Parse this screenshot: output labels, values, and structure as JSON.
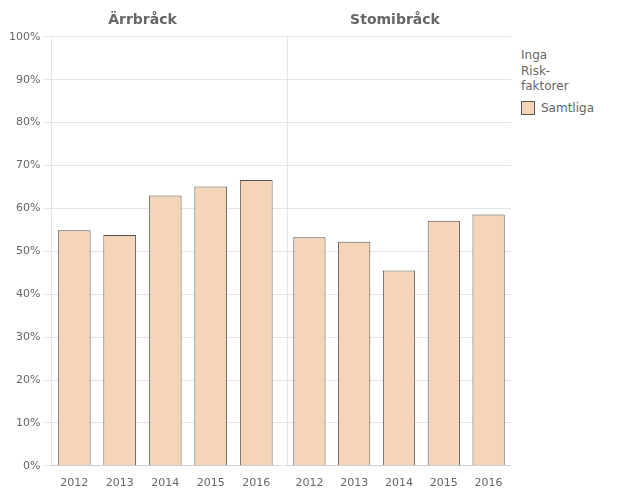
{
  "chart_data": [
    {
      "type": "bar",
      "title": "Ärrbråck",
      "categories": [
        "2012",
        "2013",
        "2014",
        "2015",
        "2016"
      ],
      "series": [
        {
          "name": "Samtliga",
          "color": "#F5D5B8",
          "values": [
            54.9,
            53.8,
            63.0,
            65.1,
            66.6
          ]
        }
      ],
      "ylim": [
        0,
        100
      ],
      "yticks": [
        {
          "value": 0,
          "label": "0%"
        },
        {
          "value": 10,
          "label": "10%"
        },
        {
          "value": 20,
          "label": "20%"
        },
        {
          "value": 30,
          "label": "30%"
        },
        {
          "value": 40,
          "label": "40%"
        },
        {
          "value": 50,
          "label": "50%"
        },
        {
          "value": 60,
          "label": "60%"
        },
        {
          "value": 70,
          "label": "70%"
        },
        {
          "value": 80,
          "label": "80%"
        },
        {
          "value": 90,
          "label": "90%"
        },
        {
          "value": 100,
          "label": "100%"
        }
      ],
      "grid": true
    },
    {
      "type": "bar",
      "title": "Stomibråck",
      "categories": [
        "2012",
        "2013",
        "2014",
        "2015",
        "2016"
      ],
      "series": [
        {
          "name": "Samtliga",
          "color": "#F5D5B8",
          "values": [
            53.3,
            52.2,
            45.5,
            57.1,
            58.6
          ]
        }
      ],
      "ylim": [
        0,
        100
      ],
      "yticks": [
        0,
        10,
        20,
        30,
        40,
        50,
        60,
        70,
        80,
        90,
        100
      ],
      "tick_labels": "x",
      "grid": true,
      "legend": "right",
      "legend_title": "Inga\nRisk-\nfaktorer"
    }
  ]
}
